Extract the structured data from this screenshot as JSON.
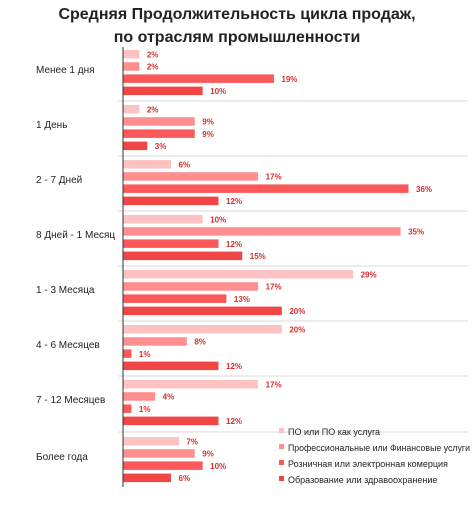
{
  "colors": {
    "s1": "#ffc2c2",
    "s2": "#ff8f8f",
    "s3": "#fb5959",
    "s4": "#f24646",
    "label": "#d92b2b",
    "axis": "#333333",
    "separator": "#cccccc"
  },
  "chart_data": {
    "type": "bar",
    "orientation": "horizontal",
    "title": [
      "Средняя Продолжительность цикла продаж,",
      "по отраслям промышленности"
    ],
    "xlim": [
      0,
      36
    ],
    "grid": false,
    "legend_position": "bottom-right",
    "categories": [
      "Менее 1 дня",
      "1 День",
      "2 - 7 Дней",
      "8 Дней - 1 Месяц",
      "1 - 3 Месяца",
      "4 - 6 Месяцев",
      "7 - 12 Месяцев",
      "Более года"
    ],
    "series": [
      {
        "name": "ПО или ПО как услуга",
        "values": [
          2,
          2,
          6,
          10,
          29,
          20,
          17,
          7
        ]
      },
      {
        "name": "Профессиональные или Финансовые услуги",
        "values": [
          2,
          9,
          17,
          35,
          17,
          8,
          4,
          9
        ]
      },
      {
        "name": "Розничная или электронная комерция",
        "values": [
          19,
          9,
          36,
          12,
          13,
          1,
          1,
          10
        ]
      },
      {
        "name": "Образование или здравоохранение",
        "values": [
          10,
          3,
          12,
          15,
          20,
          12,
          12,
          6
        ]
      }
    ],
    "value_suffix": "%"
  }
}
